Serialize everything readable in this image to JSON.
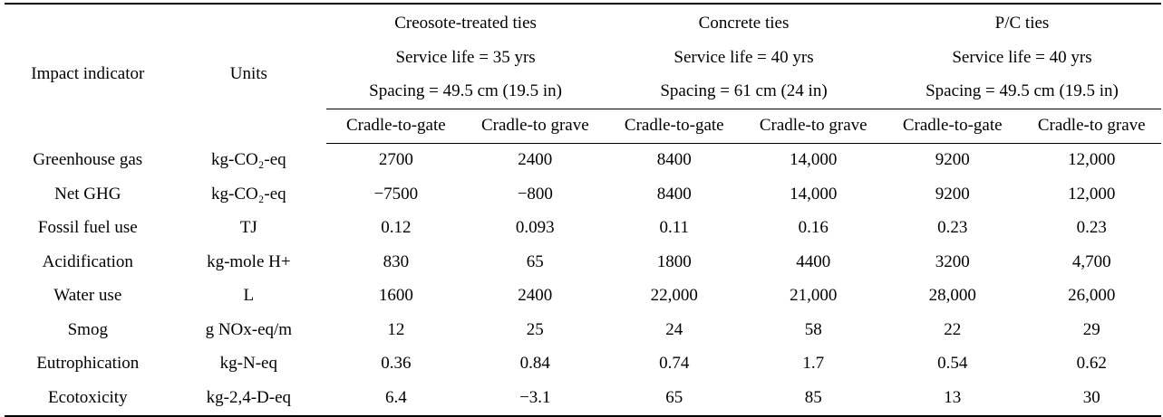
{
  "table": {
    "header": {
      "indicator": "Impact indicator",
      "units": "Units",
      "groups": [
        {
          "name": "Creosote-treated ties",
          "service_life": "Service life = 35 yrs",
          "spacing": "Spacing = 49.5 cm (19.5 in)"
        },
        {
          "name": "Concrete ties",
          "service_life": "Service life = 40 yrs",
          "spacing": "Spacing = 61 cm (24 in)"
        },
        {
          "name": "P/C ties",
          "service_life": "Service life = 40 yrs",
          "spacing": "Spacing = 49.5 cm (19.5 in)"
        }
      ],
      "subcols": [
        "Cradle-to-gate",
        "Cradle-to grave",
        "Cradle-to-gate",
        "Cradle-to grave",
        "Cradle-to-gate",
        "Cradle-to grave"
      ]
    },
    "rows": [
      {
        "indicator": "Greenhouse gas",
        "unit": "kg-CO₂-eq",
        "values": [
          "2700",
          "2400",
          "8400",
          "14,000",
          "9200",
          "12,000"
        ]
      },
      {
        "indicator": "Net GHG",
        "unit": "kg-CO₂-eq",
        "values": [
          "−7500",
          "−800",
          "8400",
          "14,000",
          "9200",
          "12,000"
        ]
      },
      {
        "indicator": "Fossil fuel use",
        "unit": "TJ",
        "values": [
          "0.12",
          "0.093",
          "0.11",
          "0.16",
          "0.23",
          "0.23"
        ]
      },
      {
        "indicator": "Acidification",
        "unit": "kg-mole H+",
        "values": [
          "830",
          "65",
          "1800",
          "4400",
          "3200",
          "4,700"
        ]
      },
      {
        "indicator": "Water use",
        "unit": "L",
        "values": [
          "1600",
          "2400",
          "22,000",
          "21,000",
          "28,000",
          "26,000"
        ]
      },
      {
        "indicator": "Smog",
        "unit": "g NOx-eq/m",
        "values": [
          "12",
          "25",
          "24",
          "58",
          "22",
          "29"
        ]
      },
      {
        "indicator": "Eutrophication",
        "unit": "kg-N-eq",
        "values": [
          "0.36",
          "0.84",
          "0.74",
          "1.7",
          "0.54",
          "0.62"
        ]
      },
      {
        "indicator": "Ecotoxicity",
        "unit": "kg-2,4-D-eq",
        "values": [
          "6.4",
          "−3.1",
          "65",
          "85",
          "13",
          "30"
        ]
      }
    ]
  }
}
